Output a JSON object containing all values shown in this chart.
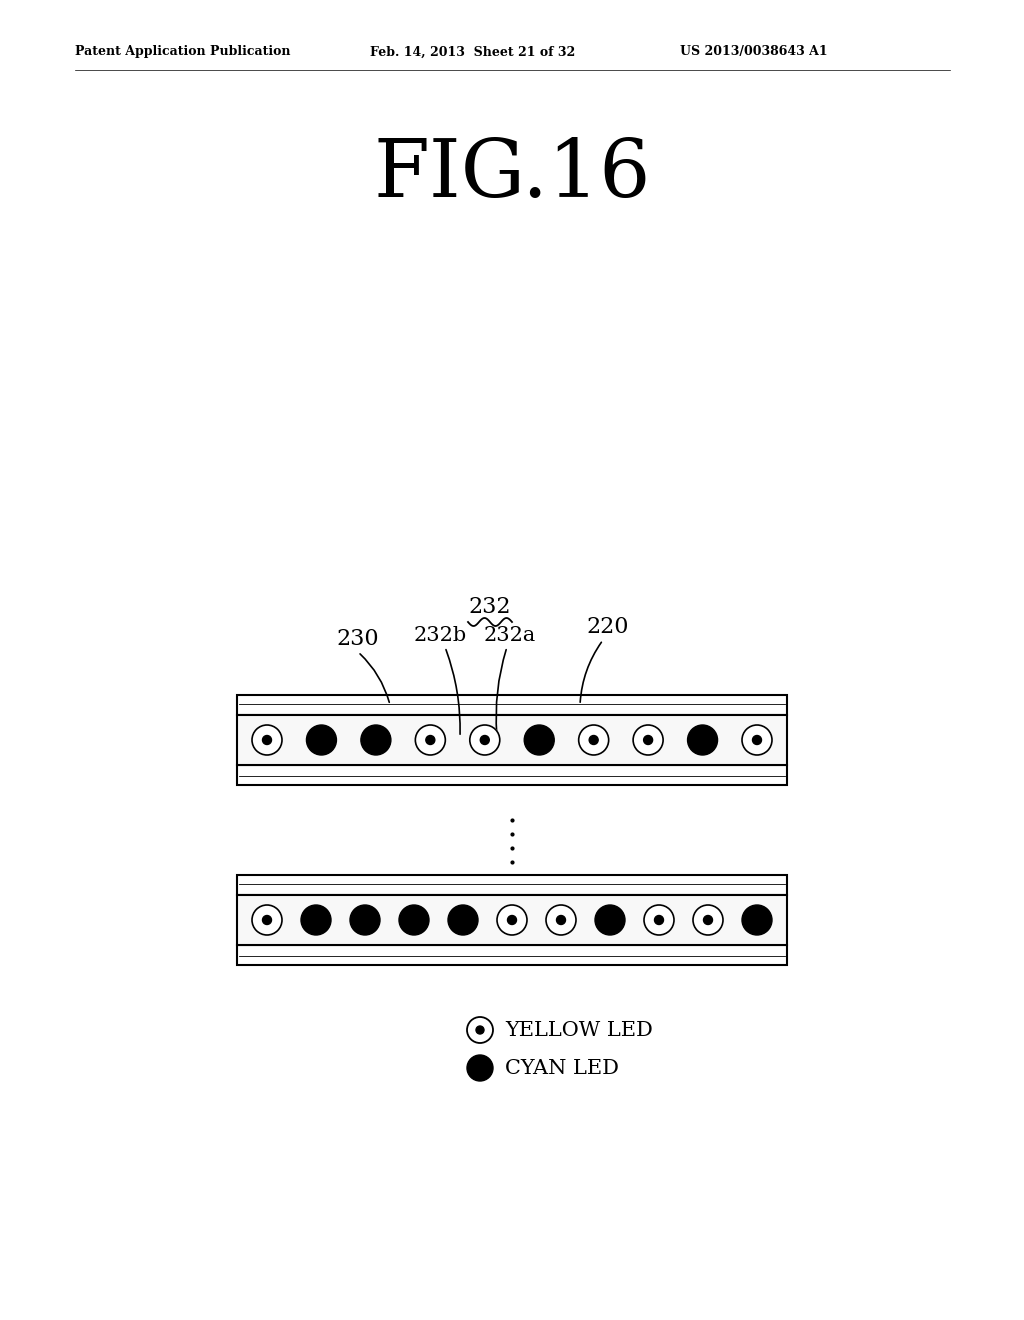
{
  "header_left": "Patent Application Publication",
  "header_mid": "Feb. 14, 2013  Sheet 21 of 32",
  "header_right": "US 2013/0038643 A1",
  "fig_title": "FIG.16",
  "strip1_leds": [
    "Y",
    "C",
    "C",
    "Y",
    "Y",
    "C",
    "Y",
    "Y",
    "C",
    "Y"
  ],
  "strip2_leds": [
    "Y",
    "C",
    "C",
    "C",
    "C",
    "Y",
    "Y",
    "C",
    "Y",
    "Y",
    "C"
  ],
  "legend_yellow_label": "YELLOW LED",
  "legend_cyan_label": "CYAN LED",
  "bg_color": "#ffffff"
}
